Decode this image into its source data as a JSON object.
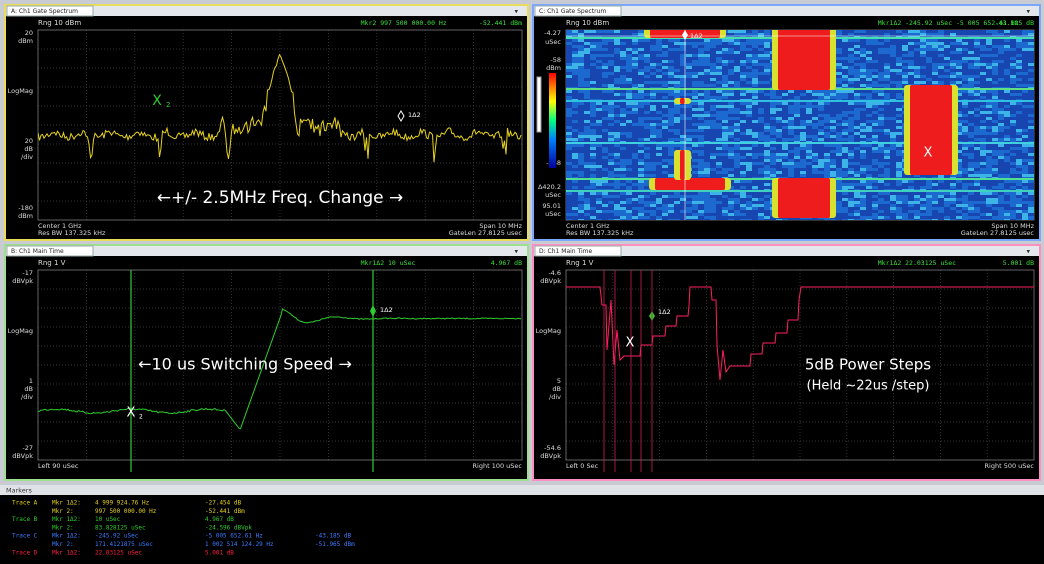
{
  "panels": [
    {
      "tab": "A: Ch1 Gate Spectrum",
      "range": "Rng 10 dBm",
      "marker_readout": "Mkr2  997 500 000.00 Hz",
      "marker_value": "-52.441 dBm",
      "axis_labels": [
        "20",
        "dBm",
        "LogMag",
        "20",
        "dB",
        "/div",
        "-180",
        "dBm"
      ],
      "footer_left": [
        "Center 1 GHz",
        "Res BW 137.325 kHz"
      ],
      "footer_right": [
        "Span 10 MHz",
        "GateLen 27.8125 usec"
      ],
      "tags": [
        "X",
        "2",
        "1Δ2"
      ],
      "annotation": [
        "←+/- 2.5MHz Freq. Change →"
      ]
    },
    {
      "tab": "B: Ch1 Main Time",
      "range": "Rng 1 V",
      "marker_readout": "Mkr1Δ2  10 uSec",
      "marker_value": "4.967 dB",
      "axis_labels": [
        "-17",
        "dBVpk",
        "LogMag",
        "1",
        "dB",
        "/div",
        "-27",
        "dBVpk"
      ],
      "footer_left": [
        "Left 90 uSec"
      ],
      "footer_right": [
        "Right 100 uSec"
      ],
      "tags": [
        "X",
        "2",
        "1Δ2"
      ],
      "annotation": [
        "←10 us Switching Speed →"
      ]
    },
    {
      "tab": "C: Ch1 Gate Spectrum",
      "range": "Rng 10 dBm",
      "marker_readout": "Mkr1Δ2  -245.92  uSec  -5 005 652.61 Hz",
      "marker_value": "-43.185 dB",
      "axis_labels": [
        "-4.27",
        "uSec",
        "-58",
        "dBm",
        "-258",
        "Δ420.2",
        "uSec",
        "95.01",
        "uSec"
      ],
      "footer_left": [
        "Center 1 GHz",
        "Res BW 137.325 kHz"
      ],
      "footer_right": [
        "Span 10 MHz",
        "GateLen 27.8125 usec"
      ],
      "tags": [
        "1Δ2",
        "X"
      ]
    },
    {
      "tab": "D: Ch1 Main Time",
      "range": "Rng 1 V",
      "marker_readout": "Mkr1Δ2  22.03125 uSec",
      "marker_value": "5.001 dB",
      "axis_labels": [
        "-4.6",
        "dBVpk",
        "LogMag",
        "5",
        "dB",
        "/div",
        "-54.6",
        "dBVpk"
      ],
      "footer_left": [
        "Left 0 Sec"
      ],
      "footer_right": [
        "Right 500 uSec"
      ],
      "tags": [
        "X",
        "1Δ2"
      ],
      "annotation": [
        "5dB Power Steps",
        "(Held ~22us  /step)"
      ]
    }
  ],
  "markers": {
    "title": "Markers",
    "rows": [
      {
        "trace": "Trace A",
        "mkr": "Mkr 1Δ2:",
        "cells": [
          "4 999 924.76 Hz",
          "-27.454 dB"
        ]
      },
      {
        "mkr": "Mkr  2:",
        "cells": [
          "997 500 000.00 Hz",
          "-52.441 dBm"
        ]
      },
      {
        "trace": "Trace B",
        "mkr": "Mkr 1Δ2:",
        "cells": [
          "10      uSec",
          "4.967 dB"
        ]
      },
      {
        "mkr": "Mkr  2:",
        "cells": [
          "83.828125 uSec",
          "-24.596 dBVpk"
        ]
      },
      {
        "trace": "Trace C",
        "mkr": "Mkr 1Δ2:",
        "cells": [
          "-245.92    uSec",
          "-5 005 652.61 Hz",
          "-43.185 dB"
        ]
      },
      {
        "mkr": "Mkr  2:",
        "cells": [
          "171.4121875 uSec",
          "1 002 514 124.29 Hz",
          "-51.965 dBm"
        ]
      },
      {
        "trace": "Trace D",
        "mkr": "Mkr 1Δ2:",
        "cells": [
          "22.03125 uSec",
          "5.001 dB"
        ]
      }
    ]
  }
}
